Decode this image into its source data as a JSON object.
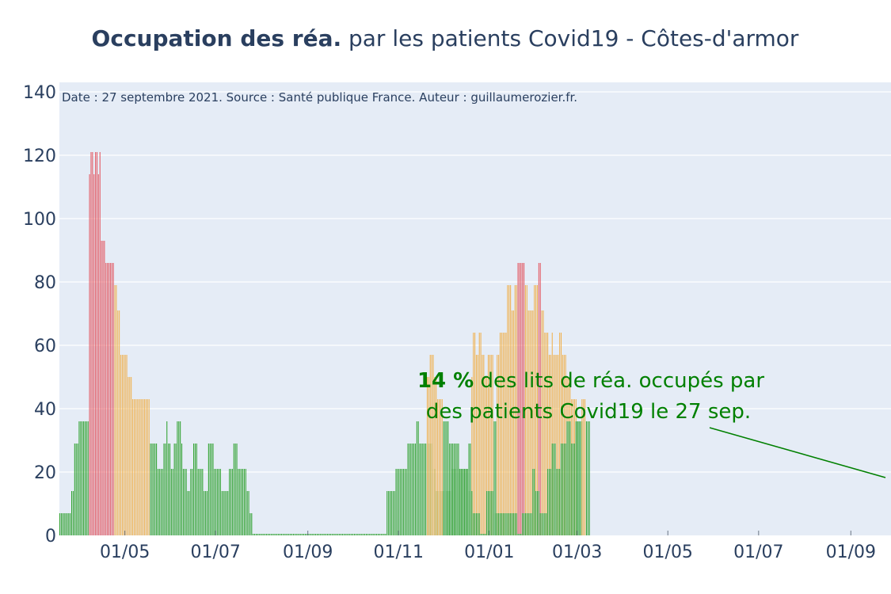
{
  "chart_data": {
    "type": "bar",
    "title_bold": "Occupation des réa.",
    "title_rest": " par les patients Covid19 - Côtes-d'armor",
    "note": "Date : 27 septembre 2021. Source : Santé publique France. Auteur : guillaumerozier.fr.",
    "annotation": {
      "value_text": "14  %",
      "line1_rest": " des lits de réa. occupés par",
      "line2": "des patients Covid19 le 27 sep."
    },
    "ylim": [
      0,
      143
    ],
    "yticks": [
      0,
      20,
      40,
      60,
      80,
      100,
      120,
      140
    ],
    "xticks": [
      {
        "date": "2020-05-01",
        "label": "01/05"
      },
      {
        "date": "2020-07-01",
        "label": "01/07"
      },
      {
        "date": "2020-09-01",
        "label": "01/09"
      },
      {
        "date": "2020-11-01",
        "label": "01/11"
      },
      {
        "date": "2021-01-01",
        "label": "01/01"
      },
      {
        "date": "2021-03-01",
        "label": "01/03"
      },
      {
        "date": "2021-05-01",
        "label": "01/05"
      },
      {
        "date": "2021-07-01",
        "label": "01/07"
      },
      {
        "date": "2021-09-01",
        "label": "01/09"
      }
    ],
    "xlim": [
      "2020-03-18",
      "2021-09-28"
    ],
    "colors": {
      "green": "#2ca02c",
      "orange": "#f0b04c",
      "red": "#e3555f"
    },
    "segments": [
      {
        "start": "2020-03-18",
        "values": [
          7,
          7,
          7,
          7,
          7,
          7,
          7,
          7,
          14,
          14,
          29,
          29,
          29,
          36,
          36,
          36,
          36,
          36,
          36,
          36
        ]
      },
      {
        "start": "2020-04-07",
        "values": [
          114,
          121,
          121,
          114,
          121,
          121,
          114,
          121,
          93,
          93,
          93,
          86,
          86,
          86,
          86,
          86,
          86
        ]
      },
      {
        "start": "2020-04-24",
        "values": [
          79,
          79,
          71,
          71,
          57,
          57,
          57,
          57,
          57,
          50,
          50,
          50,
          43,
          43,
          43,
          43,
          43,
          43,
          43,
          43,
          43,
          43,
          43,
          43
        ]
      },
      {
        "start": "2020-05-18",
        "values": [
          29,
          29,
          29,
          29,
          29,
          21,
          21,
          21,
          21,
          29,
          29,
          36,
          29,
          29,
          21,
          21,
          29,
          29,
          36,
          36,
          36,
          29,
          21,
          21,
          21,
          14,
          14,
          21,
          21,
          29,
          29,
          29,
          21,
          21,
          21,
          21,
          14,
          14,
          14,
          29,
          29,
          29,
          29,
          21,
          21,
          21,
          21,
          21,
          14,
          14,
          14,
          14,
          14,
          21,
          21,
          21,
          29,
          29,
          29,
          21,
          21,
          21,
          21,
          21,
          21,
          14,
          14,
          7,
          7
        ]
      },
      {
        "start": "2020-07-26",
        "values": [
          0.5
        ],
        "repeat": 90
      },
      {
        "start": "2020-10-24",
        "values": [
          14,
          14,
          14,
          14,
          14,
          14,
          21,
          21,
          21,
          21,
          21,
          21,
          21,
          21,
          29,
          29,
          29,
          29,
          29,
          29,
          36,
          36,
          29,
          29,
          29,
          29,
          29,
          29,
          29,
          29,
          29,
          21,
          21,
          14,
          14,
          14,
          14,
          14,
          14,
          14,
          14,
          14,
          14,
          14,
          21,
          21,
          21,
          21,
          21,
          21,
          21,
          21,
          21,
          21,
          21,
          29,
          29
        ]
      },
      {
        "start": "2020-12-20",
        "values": [
          50,
          64,
          64,
          57,
          57,
          64,
          64,
          57,
          57,
          50,
          50,
          57,
          57,
          57,
          57,
          36,
          36,
          57,
          57,
          64,
          64,
          64,
          64,
          64,
          79,
          79,
          79,
          71,
          71,
          79,
          79,
          86,
          86,
          86,
          86,
          86,
          79,
          79,
          71,
          71,
          71,
          71,
          79,
          79,
          79,
          86,
          86,
          71,
          71,
          64,
          64,
          64,
          57,
          57,
          64,
          57,
          57,
          57,
          57,
          64,
          64,
          57,
          57,
          57,
          50,
          50,
          50,
          43,
          43,
          43,
          43,
          36,
          36,
          36,
          36
        ]
      },
      {
        "start": "2020-11-20",
        "values": [
          50,
          50,
          57,
          57,
          57,
          50,
          50,
          43,
          43,
          43,
          43,
          36,
          36,
          36,
          36,
          29,
          29,
          29,
          29,
          29,
          29,
          29,
          21,
          21,
          21,
          21,
          21,
          21
        ]
      },
      {
        "start": "2020-12-18",
        "values": [
          14,
          14,
          14,
          7,
          7,
          7,
          7,
          7,
          0.5,
          0.5,
          0.5,
          0.5,
          14,
          14,
          14,
          14,
          14,
          7,
          7,
          7,
          7,
          7,
          7,
          7,
          7,
          7,
          7,
          7,
          7,
          7,
          7,
          7,
          7,
          0.5,
          0.5,
          0.5,
          7,
          7,
          7,
          7,
          7,
          7,
          7,
          21,
          21,
          14,
          14,
          14,
          7,
          7,
          7,
          7,
          7,
          21,
          21,
          21,
          29,
          29,
          29,
          21,
          21,
          21,
          29,
          29,
          29,
          29,
          36,
          36,
          36,
          29,
          29,
          29,
          36,
          36,
          36,
          36,
          43,
          43,
          43,
          36,
          36,
          36
        ]
      }
    ]
  }
}
